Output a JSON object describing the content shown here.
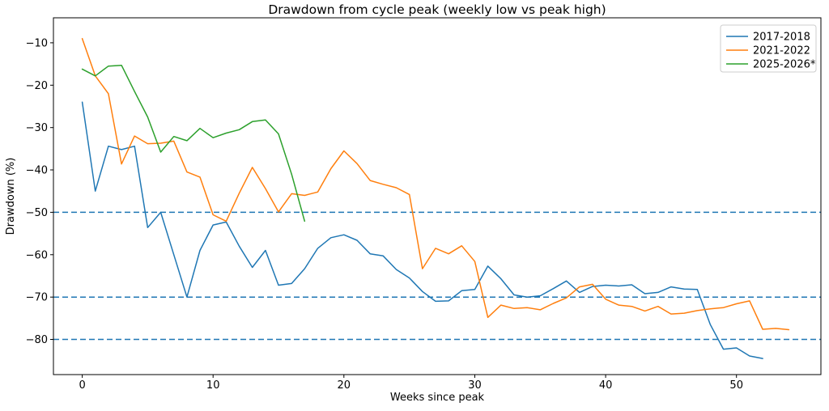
{
  "chart_data": {
    "type": "line",
    "title": "Drawdown from cycle peak (weekly low vs peak high)",
    "xlabel": "Weeks since peak",
    "ylabel": "Drawdown (%)",
    "xlim": [
      -2.2,
      56.45
    ],
    "ylim": [
      -88.3,
      -4.1
    ],
    "xticks": [
      0,
      10,
      20,
      30,
      40,
      50
    ],
    "yticks": [
      -10,
      -20,
      -30,
      -40,
      -50,
      -60,
      -70,
      -80
    ],
    "grid": false,
    "legend_position": "upper right",
    "ref_lines": {
      "values": [
        -50,
        -70,
        -80
      ],
      "color": "#1f77b4",
      "style": "dashed"
    },
    "x_start": 0,
    "x_step": 1,
    "series": [
      {
        "name": "2017-2018",
        "color": "#1f77b4",
        "values": [
          -24,
          -45,
          -34.4,
          -35.2,
          -34.4,
          -53.6,
          -50,
          -60,
          -70,
          -59,
          -53,
          -52.3,
          -58,
          -63,
          -59,
          -67.2,
          -66.8,
          -63.3,
          -58.5,
          -56,
          -55.3,
          -56.6,
          -59.8,
          -60.3,
          -63.5,
          -65.5,
          -68.7,
          -71,
          -70.9,
          -68.5,
          -68.2,
          -62.7,
          -65.7,
          -69.5,
          -70,
          -69.7,
          -68,
          -66.2,
          -68.9,
          -67.5,
          -67.2,
          -67.4,
          -67.1,
          -69.2,
          -68.9,
          -67.6,
          -68.1,
          -68.2,
          -76.5,
          -82.3,
          -82,
          -83.9,
          -84.5
        ]
      },
      {
        "name": "2021-2022",
        "color": "#ff7f0e",
        "values": [
          -9,
          -17.8,
          -22,
          -38.6,
          -32,
          -33.8,
          -33.7,
          -33.2,
          -40.5,
          -41.7,
          -50.6,
          -52.1,
          -45.5,
          -39.4,
          -44.4,
          -49.9,
          -45.6,
          -46,
          -45.2,
          -39.7,
          -35.5,
          -38.5,
          -42.5,
          -43.4,
          -44.2,
          -45.8,
          -63.3,
          -58.5,
          -59.8,
          -57.9,
          -61.6,
          -74.8,
          -71.9,
          -72.7,
          -72.5,
          -73,
          -71.5,
          -70.2,
          -67.6,
          -67,
          -70.5,
          -71.9,
          -72.2,
          -73.3,
          -72.2,
          -74,
          -73.8,
          -73.2,
          -72.8,
          -72.5,
          -71.6,
          -70.9,
          -77.6,
          -77.4,
          -77.7
        ]
      },
      {
        "name": "2025-2026*",
        "color": "#2ca02c",
        "values": [
          -16.2,
          -17.8,
          -15.5,
          -15.3,
          -21.5,
          -27.5,
          -35.8,
          -32.1,
          -33.1,
          -30.2,
          -32.4,
          -31.3,
          -30.5,
          -28.6,
          -28.2,
          -31.5,
          -41,
          -52.1
        ]
      }
    ]
  }
}
